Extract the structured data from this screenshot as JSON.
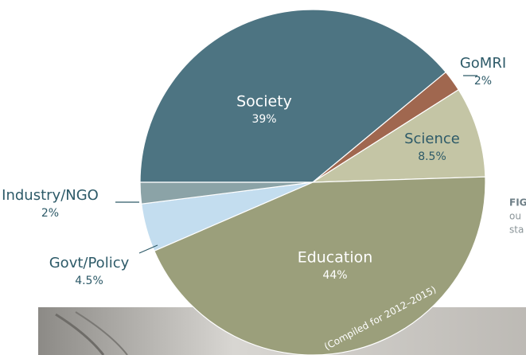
{
  "chart_data": {
    "type": "pie",
    "categories": [
      "Society",
      "GoMRI",
      "Science",
      "Education",
      "Govt/Policy",
      "Industry/NGO"
    ],
    "values": [
      39,
      2,
      8.5,
      44,
      4.5,
      2
    ],
    "value_labels": [
      "39%",
      "2%",
      "8.5%",
      "44%",
      "4.5%",
      "2%"
    ],
    "colors": [
      "#4d7482",
      "#a0674f",
      "#c4c5a5",
      "#9b9f7b",
      "#c3ddef",
      "#8ba3a7"
    ],
    "annotation": "(Compiled for 2012–2015)"
  },
  "side_text": [
    "FIG",
    "ou",
    "sta"
  ]
}
